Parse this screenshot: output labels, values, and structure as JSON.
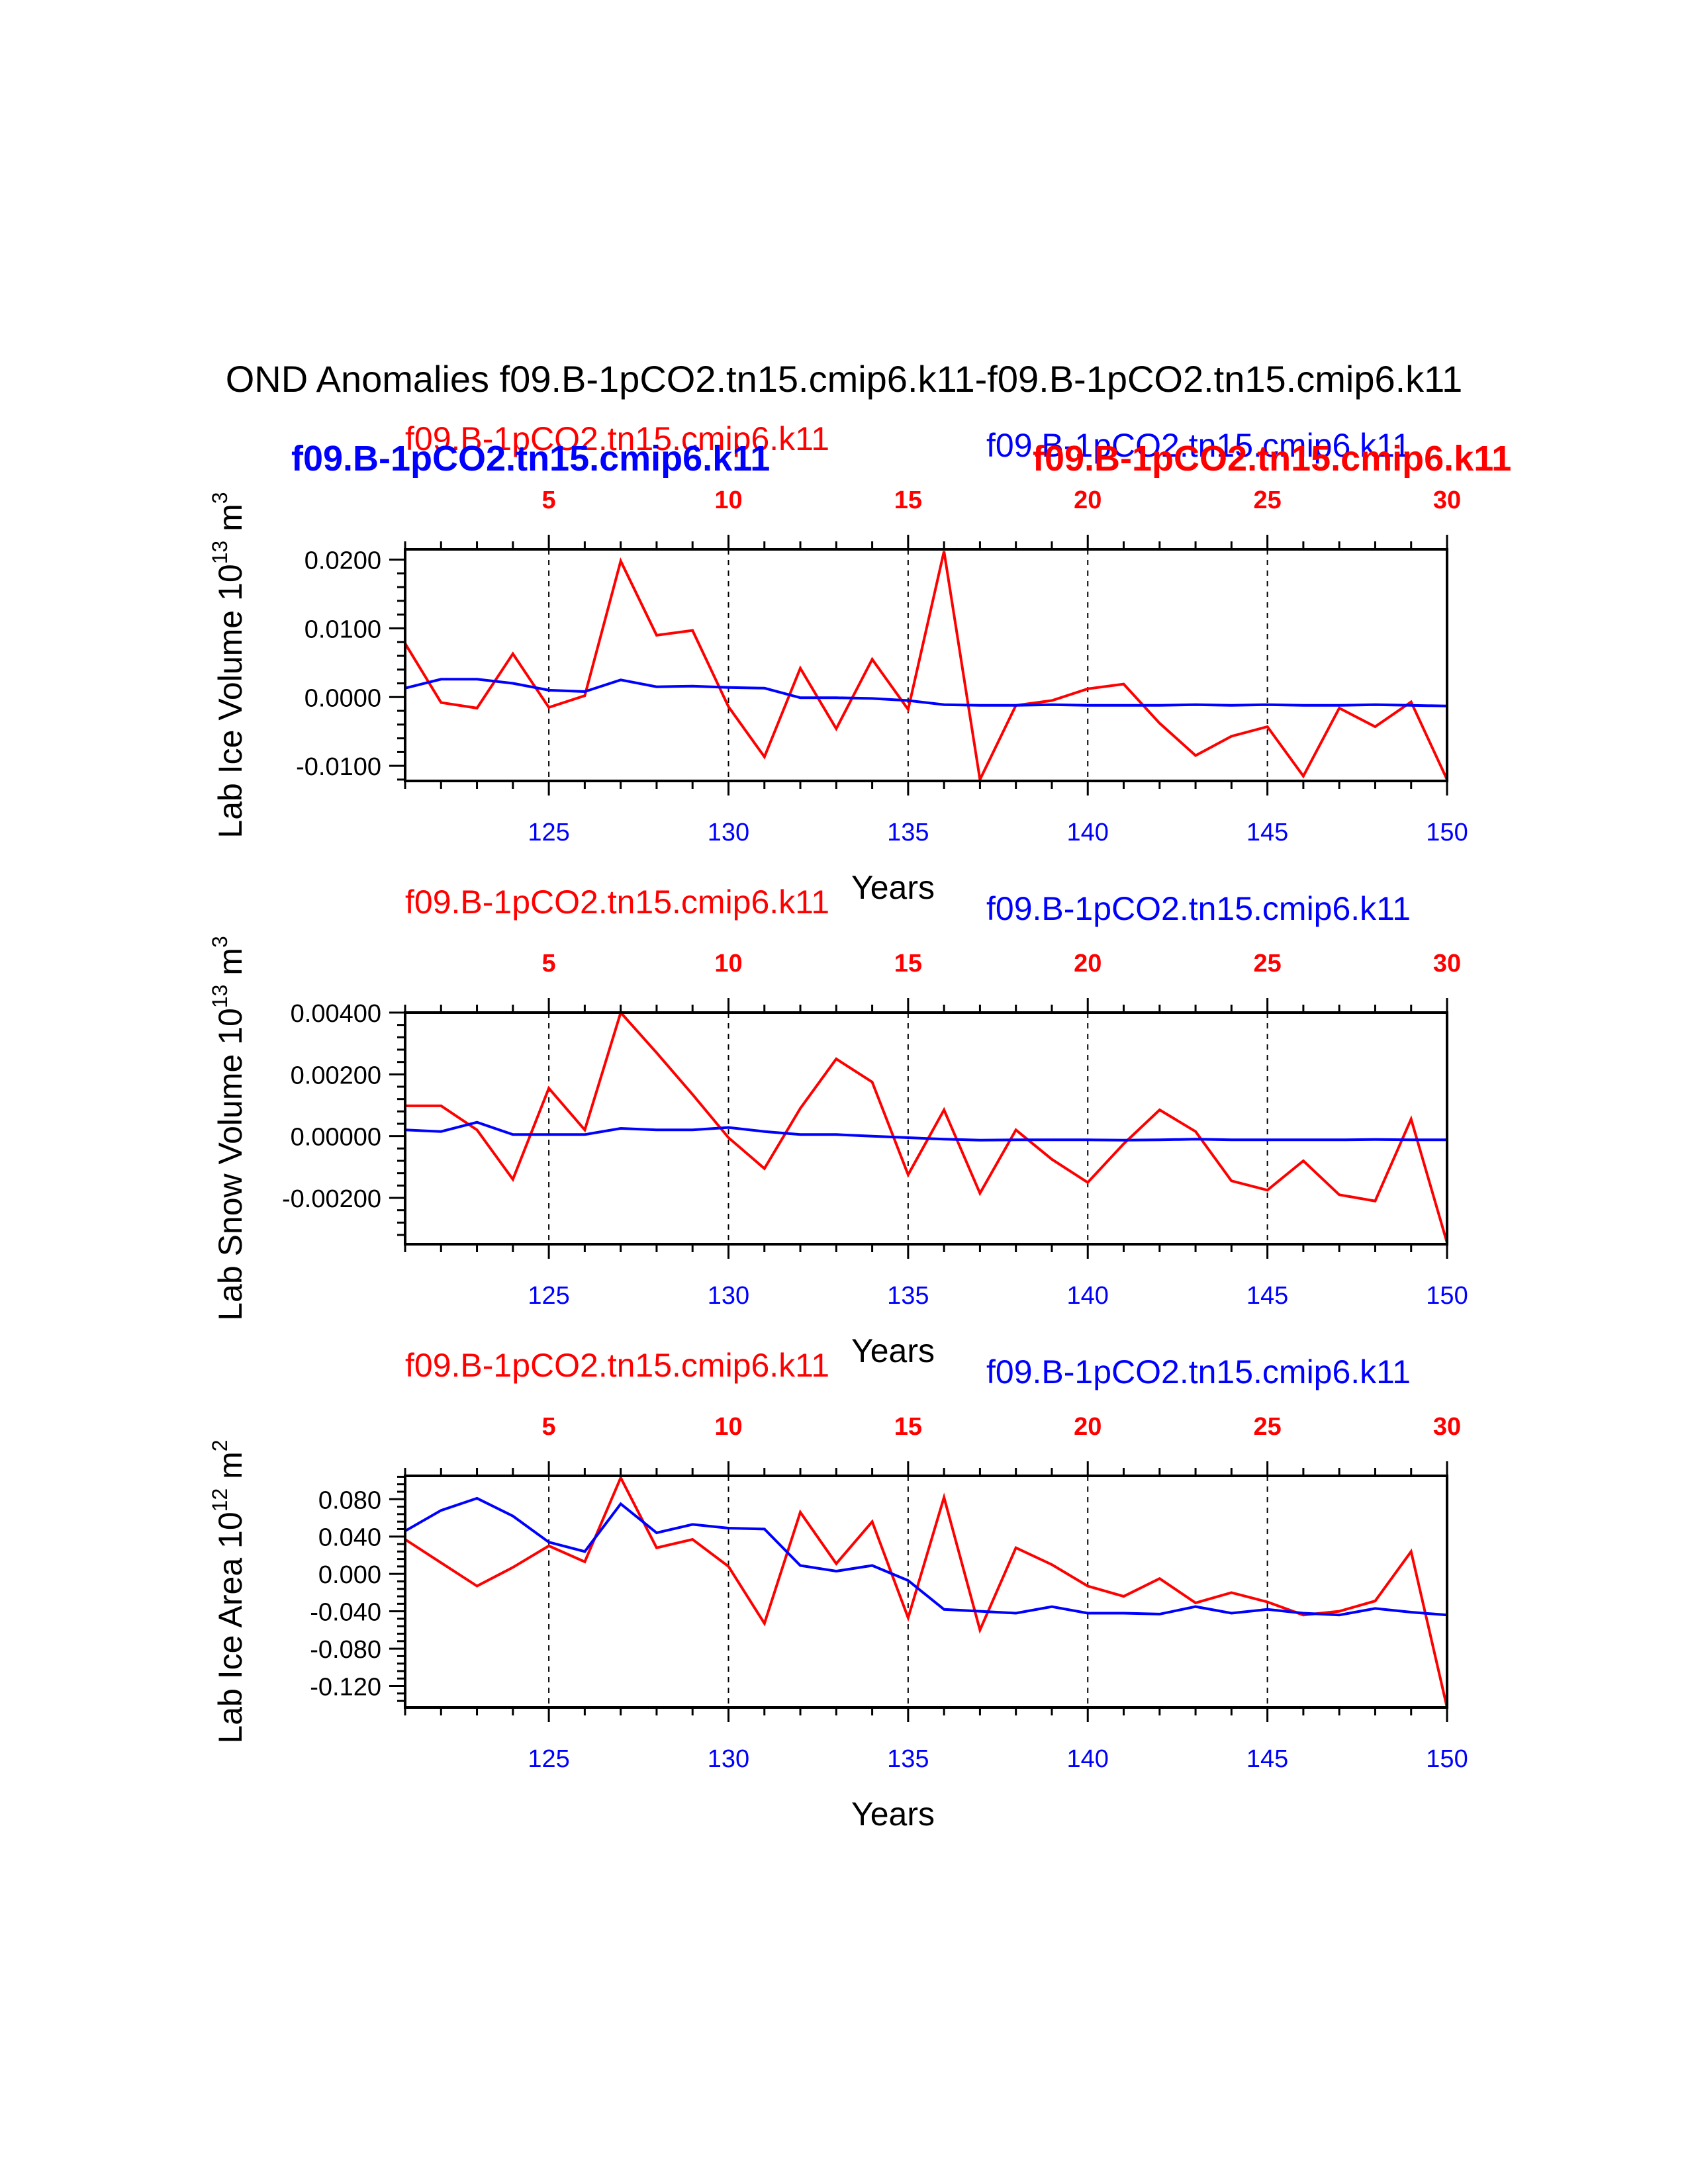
{
  "title": "OND Anomalies f09.B-1pCO2.tn15.cmip6.k11-f09.B-1pCO2.tn15.cmip6.k11",
  "colors": {
    "red": "#ff0000",
    "blue": "#0000ff",
    "black": "#000000"
  },
  "overlay_labels": {
    "left": "f09.B-1pCO2.tn15.cmip6.k11",
    "right": "f09.B-1pCO2.tn15.cmip6.k11"
  },
  "chart_data": [
    {
      "type": "line",
      "title_left": "f09.B-1pCO2.tn15.cmip6.k11",
      "title_right": "f09.B-1pCO2.tn15.cmip6.k11",
      "ylabel": "Lab Ice Volume 10",
      "ylabel_exp": "13",
      "ylabel_unit": " m",
      "ylabel_unit_exp": "3",
      "xlabel": "Years",
      "xlim": [
        121,
        150
      ],
      "ylim": [
        -0.0122,
        0.0215
      ],
      "yticks": [
        -0.01,
        0.0,
        0.01,
        0.02
      ],
      "ytick_labels": [
        "-0.0100",
        "0.0000",
        "0.0100",
        "0.0200"
      ],
      "y_minor_step": 0.002,
      "xticks_bottom": [
        125,
        130,
        135,
        140,
        145,
        150
      ],
      "xticks_top_labels": [
        "5",
        "10",
        "15",
        "20",
        "25",
        "30"
      ],
      "x": [
        121,
        122,
        123,
        124,
        125,
        126,
        127,
        128,
        129,
        130,
        131,
        132,
        133,
        134,
        135,
        136,
        137,
        138,
        139,
        140,
        141,
        142,
        143,
        144,
        145,
        146,
        147,
        148,
        149,
        150
      ],
      "series": [
        {
          "name": "red",
          "color": "#ff0000",
          "values": [
            0.0078,
            -0.0008,
            -0.0016,
            0.0063,
            -0.0015,
            0.0002,
            0.0198,
            0.009,
            0.0097,
            -0.0014,
            -0.0087,
            0.0042,
            -0.0046,
            0.0055,
            -0.0018,
            0.0212,
            -0.012,
            -0.0012,
            -0.0005,
            0.0012,
            0.0019,
            -0.0038,
            -0.0085,
            -0.0057,
            -0.0043,
            -0.0115,
            -0.0016,
            -0.0043,
            -0.0007,
            -0.012
          ]
        },
        {
          "name": "blue",
          "color": "#0000ff",
          "values": [
            0.0013,
            0.0026,
            0.0026,
            0.002,
            0.001,
            0.0008,
            0.0025,
            0.0015,
            0.0016,
            0.0014,
            0.0013,
            -0.0001,
            -0.0001,
            -0.0002,
            -0.0005,
            -0.0011,
            -0.0012,
            -0.0012,
            -0.0011,
            -0.0012,
            -0.0012,
            -0.0012,
            -0.0011,
            -0.0012,
            -0.0011,
            -0.0012,
            -0.0012,
            -0.0011,
            -0.0012,
            -0.0013
          ]
        }
      ]
    },
    {
      "type": "line",
      "title_left": "f09.B-1pCO2.tn15.cmip6.k11",
      "title_right": "f09.B-1pCO2.tn15.cmip6.k11",
      "ylabel": "Lab Snow Volume 10",
      "ylabel_exp": "13",
      "ylabel_unit": " m",
      "ylabel_unit_exp": "3",
      "xlabel": "Years",
      "xlim": [
        121,
        150
      ],
      "ylim": [
        -0.0035,
        0.004
      ],
      "yticks": [
        -0.002,
        0.0,
        0.002,
        0.004
      ],
      "ytick_labels": [
        "-0.00200",
        "0.00000",
        "0.00200",
        "0.00400"
      ],
      "y_minor_step": 0.0004,
      "xticks_bottom": [
        125,
        130,
        135,
        140,
        145,
        150
      ],
      "xticks_top_labels": [
        "5",
        "10",
        "15",
        "20",
        "25",
        "30"
      ],
      "x": [
        121,
        122,
        123,
        124,
        125,
        126,
        127,
        128,
        129,
        130,
        131,
        132,
        133,
        134,
        135,
        136,
        137,
        138,
        139,
        140,
        141,
        142,
        143,
        144,
        145,
        146,
        147,
        148,
        149,
        150
      ],
      "series": [
        {
          "name": "red",
          "color": "#ff0000",
          "values": [
            0.00098,
            0.00098,
            0.0002,
            -0.0014,
            0.00155,
            0.0002,
            0.004,
            0.0027,
            0.00135,
            -5e-05,
            -0.00105,
            0.0009,
            0.0025,
            0.00175,
            -0.00125,
            0.00085,
            -0.00185,
            0.0002,
            -0.00075,
            -0.0015,
            -0.00025,
            0.00085,
            0.00015,
            -0.00145,
            -0.00175,
            -0.0008,
            -0.0019,
            -0.0021,
            0.00055,
            -0.00345
          ]
        },
        {
          "name": "blue",
          "color": "#0000ff",
          "values": [
            0.0002,
            0.00015,
            0.00045,
            5e-05,
            5e-05,
            5e-05,
            0.00025,
            0.0002,
            0.0002,
            0.00028,
            0.00015,
            5e-05,
            5e-05,
            0.0,
            -5e-05,
            -0.0001,
            -0.00013,
            -0.00012,
            -0.00012,
            -0.00012,
            -0.00013,
            -0.00012,
            -0.0001,
            -0.00012,
            -0.00012,
            -0.00012,
            -0.00012,
            -0.00011,
            -0.00012,
            -0.00012
          ]
        }
      ]
    },
    {
      "type": "line",
      "title_left": "f09.B-1pCO2.tn15.cmip6.k11",
      "title_right": "f09.B-1pCO2.tn15.cmip6.k11",
      "ylabel": "Lab Ice Area 10",
      "ylabel_exp": "12",
      "ylabel_unit": " m",
      "ylabel_unit_exp": "2",
      "xlabel": "Years",
      "xlim": [
        121,
        150
      ],
      "ylim": [
        -0.143,
        0.105
      ],
      "yticks": [
        -0.12,
        -0.08,
        -0.04,
        0.0,
        0.04,
        0.08
      ],
      "ytick_labels": [
        "-0.120",
        "-0.080",
        "-0.040",
        "0.000",
        "0.040",
        "0.080"
      ],
      "y_minor_step": 0.008,
      "xticks_bottom": [
        125,
        130,
        135,
        140,
        145,
        150
      ],
      "xticks_top_labels": [
        "5",
        "10",
        "15",
        "20",
        "25",
        "30"
      ],
      "x": [
        121,
        122,
        123,
        124,
        125,
        126,
        127,
        128,
        129,
        130,
        131,
        132,
        133,
        134,
        135,
        136,
        137,
        138,
        139,
        140,
        141,
        142,
        143,
        144,
        145,
        146,
        147,
        148,
        149,
        150
      ],
      "series": [
        {
          "name": "red",
          "color": "#ff0000",
          "values": [
            0.037,
            0.012,
            -0.013,
            0.007,
            0.03,
            0.013,
            0.103,
            0.028,
            0.037,
            0.008,
            -0.053,
            0.066,
            0.011,
            0.056,
            -0.047,
            0.082,
            -0.06,
            0.028,
            0.01,
            -0.013,
            -0.024,
            -0.005,
            -0.031,
            -0.02,
            -0.03,
            -0.044,
            -0.04,
            -0.029,
            0.024,
            -0.143
          ]
        },
        {
          "name": "blue",
          "color": "#0000ff",
          "values": [
            0.046,
            0.068,
            0.081,
            0.062,
            0.034,
            0.024,
            0.075,
            0.044,
            0.053,
            0.049,
            0.048,
            0.009,
            0.003,
            0.009,
            -0.007,
            -0.038,
            -0.04,
            -0.042,
            -0.035,
            -0.042,
            -0.042,
            -0.043,
            -0.035,
            -0.042,
            -0.038,
            -0.042,
            -0.044,
            -0.037,
            -0.041,
            -0.044
          ]
        }
      ]
    }
  ]
}
